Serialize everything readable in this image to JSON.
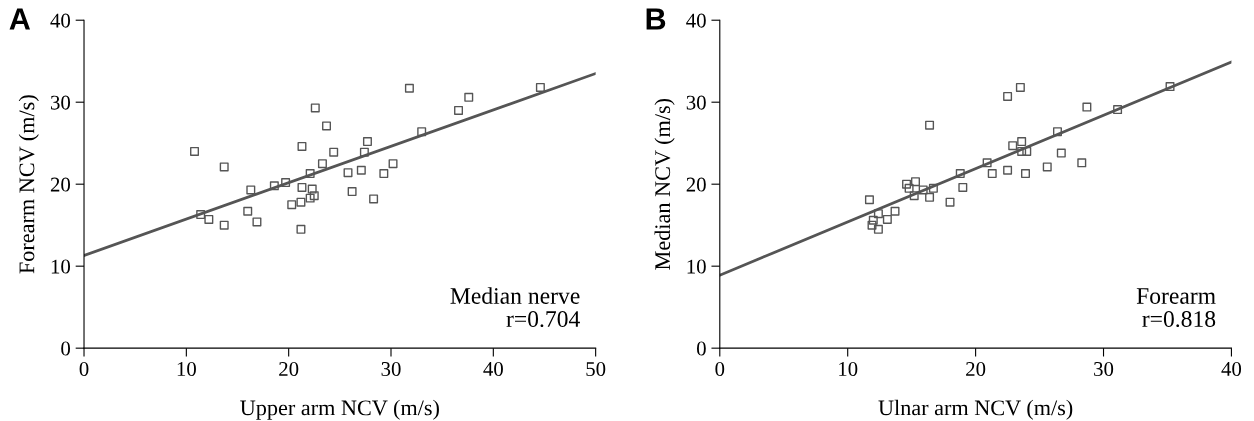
{
  "chart_data": [
    {
      "type": "scatter",
      "xlabel": "Upper arm NCV (m/s)",
      "ylabel": "Forearm NCV (m/s)",
      "annotations": [
        "A",
        "Median nerve\nr=0.704"
      ],
      "xlim": [
        0,
        50
      ],
      "xticks": [
        0,
        10,
        20,
        30,
        40,
        50
      ],
      "ylim": [
        0,
        40
      ],
      "yticks": [
        0,
        10,
        20,
        30,
        40
      ],
      "grid": false,
      "legend": false,
      "series": [
        {
          "marker": "square",
          "color": "#555555",
          "x": [
            10.8,
            13.7,
            16.3,
            18.6,
            19.7,
            21.3,
            22.6,
            23.7,
            24.4,
            23.3,
            22.1,
            21.3,
            22.3,
            22.5,
            22.1,
            21.2,
            20.3,
            21.2,
            11.4,
            12.2,
            13.7,
            16.0,
            16.9,
            25.8,
            26.2,
            27.1,
            27.4,
            27.7,
            28.3,
            29.3,
            30.2,
            31.8,
            33.0,
            36.6,
            37.6,
            44.6
          ],
          "values": [
            24.0,
            22.1,
            19.3,
            19.8,
            20.2,
            24.6,
            29.3,
            27.1,
            23.9,
            22.5,
            21.3,
            19.6,
            19.4,
            18.6,
            18.3,
            17.8,
            17.5,
            14.5,
            16.3,
            15.7,
            15.0,
            16.7,
            15.4,
            21.4,
            19.1,
            21.7,
            23.9,
            25.2,
            18.2,
            21.3,
            22.5,
            31.7,
            26.4,
            29.0,
            30.6,
            31.8
          ]
        },
        {
          "type": "line",
          "marker": "none",
          "color": "#555555",
          "x": [
            0,
            50
          ],
          "values": [
            11.3,
            33.5
          ]
        }
      ]
    },
    {
      "type": "scatter",
      "xlabel": "Ulnar arm NCV (m/s)",
      "ylabel": "Median NCV (m/s)",
      "annotations": [
        "B",
        "Forearm\nr=0.818"
      ],
      "xlim": [
        0,
        40
      ],
      "xticks": [
        0,
        10,
        20,
        30,
        40
      ],
      "ylim": [
        0,
        40
      ],
      "yticks": [
        0,
        10,
        20,
        30,
        40
      ],
      "grid": false,
      "legend": false,
      "series": [
        {
          "marker": "square",
          "color": "#555555",
          "x": [
            11.7,
            12.4,
            12.0,
            11.9,
            12.4,
            13.1,
            13.7,
            14.6,
            14.8,
            15.3,
            15.2,
            15.9,
            16.7,
            16.4,
            16.4,
            18.0,
            18.8,
            19.0,
            20.9,
            21.3,
            22.5,
            22.5,
            23.5,
            22.9,
            23.6,
            23.6,
            24.0,
            23.9,
            25.6,
            26.4,
            26.7,
            28.3,
            28.7,
            31.1,
            35.2
          ],
          "values": [
            18.1,
            16.4,
            15.6,
            15.0,
            14.5,
            15.7,
            16.7,
            20.0,
            19.5,
            20.3,
            18.6,
            19.3,
            19.5,
            18.4,
            27.2,
            17.8,
            21.3,
            19.6,
            22.6,
            21.3,
            21.7,
            30.7,
            31.8,
            24.7,
            25.2,
            24.0,
            24.0,
            21.3,
            22.1,
            26.4,
            23.8,
            22.6,
            29.4,
            29.1,
            31.9
          ]
        },
        {
          "type": "line",
          "marker": "none",
          "color": "#555555",
          "x": [
            0,
            40
          ],
          "values": [
            8.9,
            34.9
          ]
        }
      ]
    }
  ]
}
